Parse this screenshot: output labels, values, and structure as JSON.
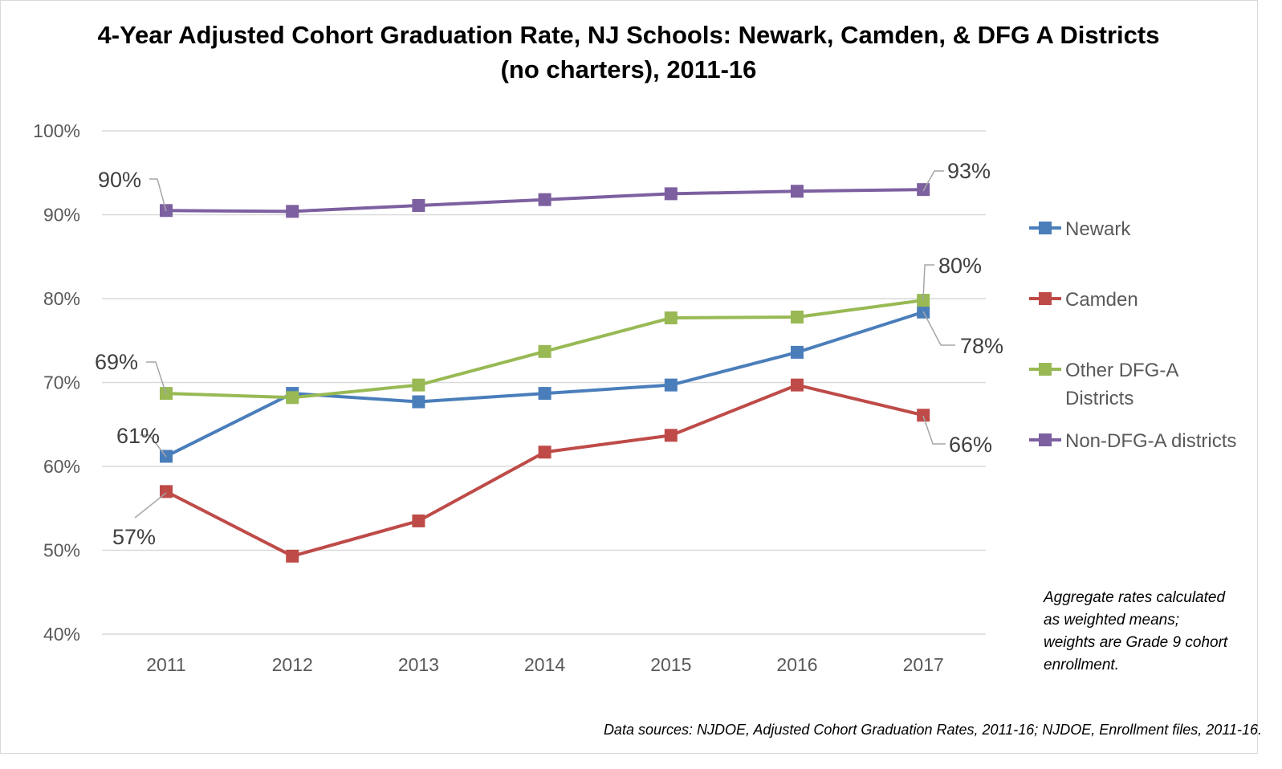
{
  "chart_data": {
    "type": "line",
    "title": "4-Year Adjusted Cohort Graduation Rate, NJ Schools: Newark, Camden, & DFG A Districts (no charters), 2011-16",
    "x": [
      "2011",
      "2012",
      "2013",
      "2014",
      "2015",
      "2016",
      "2017"
    ],
    "ylim": [
      0.4,
      1.0
    ],
    "yticks": [
      0.4,
      0.5,
      0.6,
      0.7,
      0.8,
      0.9,
      1.0
    ],
    "ytick_labels": [
      "40%",
      "50%",
      "60%",
      "70%",
      "80%",
      "90%",
      "100%"
    ],
    "grid": true,
    "legend_position": "right",
    "series": [
      {
        "name": "Newark",
        "color": "#4a7ebb",
        "values": [
          0.612,
          0.687,
          0.677,
          0.687,
          0.697,
          0.736,
          0.784
        ],
        "labels": [
          {
            "index": 0,
            "text": "61%"
          },
          {
            "index": 6,
            "text": "78%"
          }
        ]
      },
      {
        "name": "Camden",
        "color": "#be4b48",
        "values": [
          0.57,
          0.493,
          0.535,
          0.617,
          0.637,
          0.697,
          0.661
        ],
        "labels": [
          {
            "index": 0,
            "text": "57%"
          },
          {
            "index": 6,
            "text": "66%"
          }
        ]
      },
      {
        "name": "Other DFG-A Districts",
        "color": "#98b954",
        "values": [
          0.687,
          0.682,
          0.697,
          0.737,
          0.777,
          0.778,
          0.798
        ],
        "labels": [
          {
            "index": 0,
            "text": "69%"
          },
          {
            "index": 6,
            "text": "80%"
          }
        ]
      },
      {
        "name": "Non-DFG-A districts",
        "color": "#7d60a0",
        "values": [
          0.905,
          0.904,
          0.911,
          0.918,
          0.925,
          0.928,
          0.93
        ],
        "labels": [
          {
            "index": 0,
            "text": "90%"
          },
          {
            "index": 6,
            "text": "93%"
          }
        ]
      }
    ],
    "annotations": [
      "Aggregate rates calculated as weighted means; weights are Grade 9 cohort enrollment.",
      "Data sources: NJDOE, Adjusted Cohort Graduation Rates, 2011-16; NJDOE, Enrollment files, 2011-16."
    ]
  },
  "colors": {
    "gridline": "#d9d9d9",
    "leader": "#a6a6a6"
  }
}
